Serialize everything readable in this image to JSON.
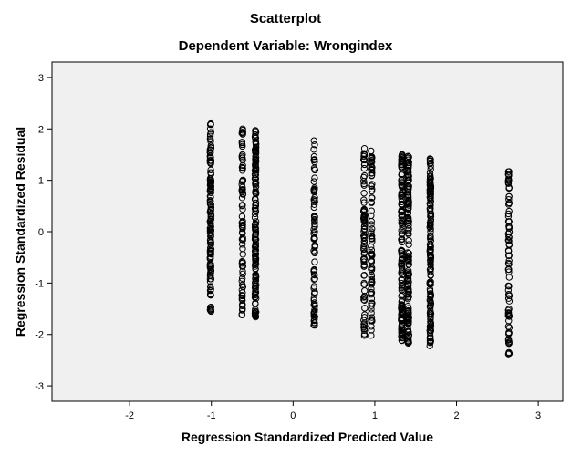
{
  "chart_data": {
    "type": "scatter",
    "title": "Scatterplot",
    "subtitle": "Dependent Variable: Wrongindex",
    "xlabel": "Regression Standardized Predicted Value",
    "ylabel": "Regression Standardized Residual",
    "xlim": [
      -2.95,
      3.3
    ],
    "ylim": [
      -3.3,
      3.3
    ],
    "xticks": [
      -2,
      -1,
      0,
      1,
      2,
      3
    ],
    "yticks": [
      -3,
      -2,
      -1,
      0,
      1,
      2,
      3
    ],
    "grid": false,
    "legend": "none",
    "plot_background": "#f0f0f0",
    "marker_color": "#000000",
    "columns": [
      {
        "x": -1.01,
        "y_min": -1.55,
        "y_max": 2.1
      },
      {
        "x": -0.62,
        "y_min": -1.62,
        "y_max": 2.0
      },
      {
        "x": -0.46,
        "y_min": -1.66,
        "y_max": 1.97
      },
      {
        "x": 0.26,
        "y_min": -1.82,
        "y_max": 1.77
      },
      {
        "x": 0.87,
        "y_min": -2.02,
        "y_max": 1.62
      },
      {
        "x": 0.96,
        "y_min": -2.02,
        "y_max": 1.57
      },
      {
        "x": 1.33,
        "y_min": -2.12,
        "y_max": 1.5
      },
      {
        "x": 1.41,
        "y_min": -2.17,
        "y_max": 1.47
      },
      {
        "x": 1.68,
        "y_min": -2.22,
        "y_max": 1.42
      },
      {
        "x": 2.64,
        "y_min": -2.38,
        "y_max": 1.17
      }
    ]
  }
}
